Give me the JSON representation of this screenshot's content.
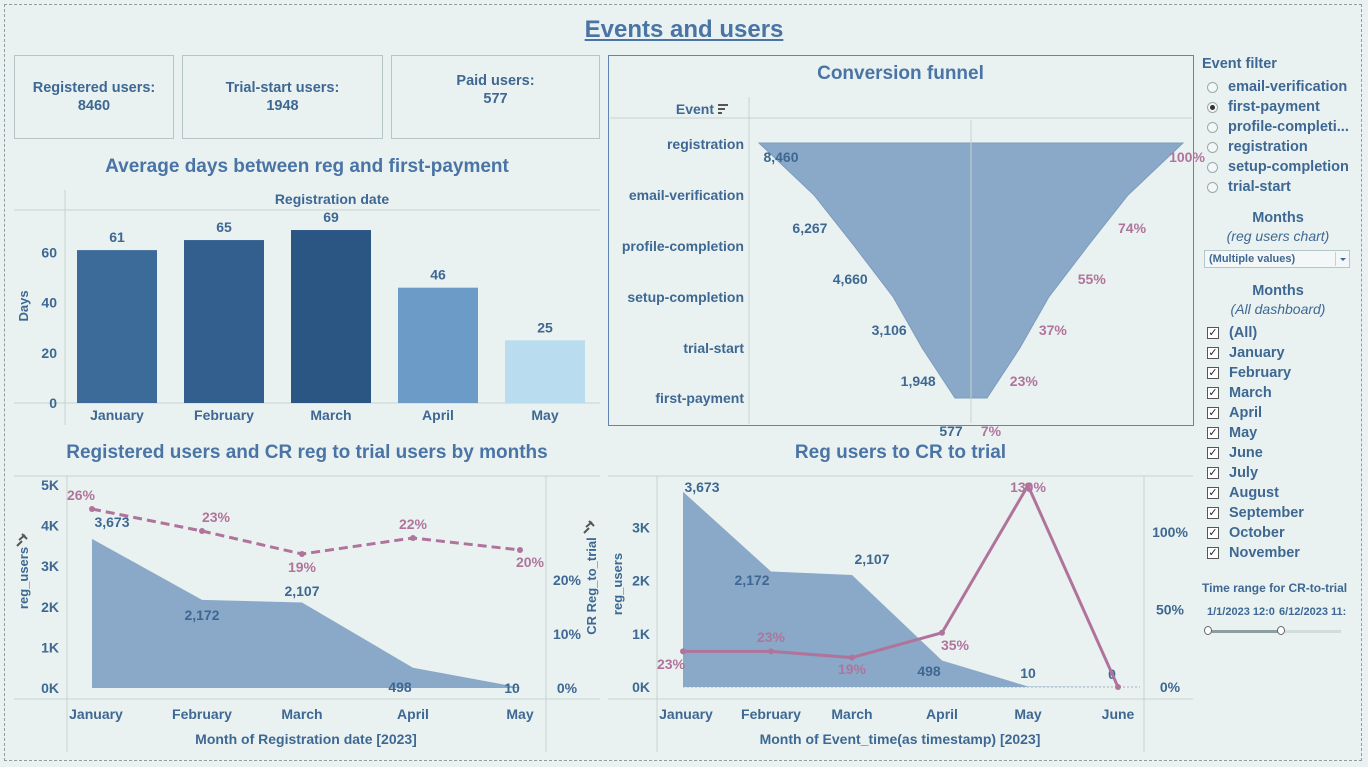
{
  "dashboard": {
    "title": "Events and users"
  },
  "kpis": [
    {
      "label": "Registered users:",
      "value": "8460"
    },
    {
      "label": "Trial-start users:",
      "value": "1948"
    },
    {
      "label": "Paid users:",
      "value": "577"
    }
  ],
  "colors": {
    "accent": "#4a74a5",
    "area": "#8aa8c7",
    "pink": "#b0749c",
    "bg": "#e9f2f0"
  },
  "chart_data": [
    {
      "type": "bar",
      "title": "Average days between reg and first-payment",
      "header": "Registration date",
      "ylabel": "Days",
      "categories": [
        "January",
        "February",
        "March",
        "April",
        "May"
      ],
      "values": [
        61,
        65,
        69,
        46,
        25
      ],
      "labels": [
        "61",
        "65",
        "69",
        "46",
        "25"
      ],
      "colors": [
        "#3c6b99",
        "#335f8e",
        "#2b5683",
        "#6b9bc6",
        "#b9dcef"
      ],
      "ylim": [
        0,
        75
      ],
      "yticks": [
        0,
        20,
        40,
        60
      ],
      "ytick_labels": [
        "0",
        "20",
        "40",
        "60"
      ]
    },
    {
      "type": "area",
      "title": "Conversion funnel",
      "header": "Event",
      "categories": [
        "registration",
        "email-verification",
        "profile-completion",
        "setup-completion",
        "trial-start",
        "first-payment"
      ],
      "values": [
        8460,
        6267,
        4660,
        3106,
        1948,
        577
      ],
      "value_labels": [
        "8,460",
        "6,267",
        "4,660",
        "3,106",
        "1,948",
        "577"
      ],
      "pct_labels": [
        "100%",
        "74%",
        "55%",
        "37%",
        "23%",
        "7%"
      ]
    },
    {
      "type": "area",
      "title": "Registered users and CR reg to trial users by months",
      "xlabel": "Month of Registration date [2023]",
      "ylabel": "reg_users",
      "y2label": "CR Reg_to_trial",
      "categories": [
        "January",
        "February",
        "March",
        "April",
        "May"
      ],
      "series": [
        {
          "name": "reg_users",
          "values": [
            3673,
            2172,
            2107,
            498,
            10
          ],
          "labels": [
            "3,673",
            "2,172",
            "2,107",
            "498",
            "10"
          ]
        },
        {
          "name": "CR Reg_to_trial",
          "values": [
            26,
            23,
            19,
            22,
            20
          ],
          "labels": [
            "26%",
            "23%",
            "19%",
            "22%",
            "20%"
          ]
        }
      ],
      "ylim": [
        0,
        5000
      ],
      "yticks": [
        "0K",
        "1K",
        "2K",
        "3K",
        "4K",
        "5K"
      ],
      "y2ticks": [
        "0%",
        "10%",
        "20%"
      ]
    },
    {
      "type": "area",
      "title": "Reg users to CR to trial",
      "xlabel": "Month of Event_time(as timestamp) [2023]",
      "ylabel": "reg_users",
      "categories": [
        "January",
        "February",
        "March",
        "April",
        "May",
        "June"
      ],
      "series": [
        {
          "name": "reg_users",
          "values": [
            3673,
            2172,
            2107,
            498,
            10,
            0
          ],
          "labels": [
            "3,673",
            "2,172",
            "2,107",
            "498",
            "10",
            "0"
          ]
        },
        {
          "name": "CR",
          "values": [
            23,
            23,
            19,
            35,
            130,
            0
          ],
          "labels": [
            "23%",
            "23%",
            "19%",
            "35%",
            "130%",
            ""
          ]
        }
      ],
      "ylim": [
        0,
        3800
      ],
      "yticks": [
        "0K",
        "1K",
        "2K",
        "3K"
      ],
      "y2ticks": [
        "0%",
        "50%",
        "100%"
      ]
    }
  ],
  "filters": {
    "event_filter_title": "Event filter",
    "events": [
      {
        "label": "email-verification",
        "selected": false
      },
      {
        "label": "first-payment",
        "selected": true
      },
      {
        "label": "profile-completi...",
        "selected": false
      },
      {
        "label": "registration",
        "selected": false
      },
      {
        "label": "setup-completion",
        "selected": false
      },
      {
        "label": "trial-start",
        "selected": false
      }
    ],
    "months_title": "Months",
    "months_sub_reg": "(reg users chart)",
    "months_dropdown_value": "(Multiple values)",
    "months_sub_all": "(All dashboard)",
    "months": [
      "(All)",
      "January",
      "February",
      "March",
      "April",
      "May",
      "June",
      "July",
      "August",
      "September",
      "October",
      "November"
    ],
    "time_range_title": "Time range for CR-to-trial",
    "time_range_start": "1/1/2023 12:0",
    "time_range_end": "6/12/2023 11:",
    "time_range_fraction": [
      0.0,
      0.55
    ]
  }
}
